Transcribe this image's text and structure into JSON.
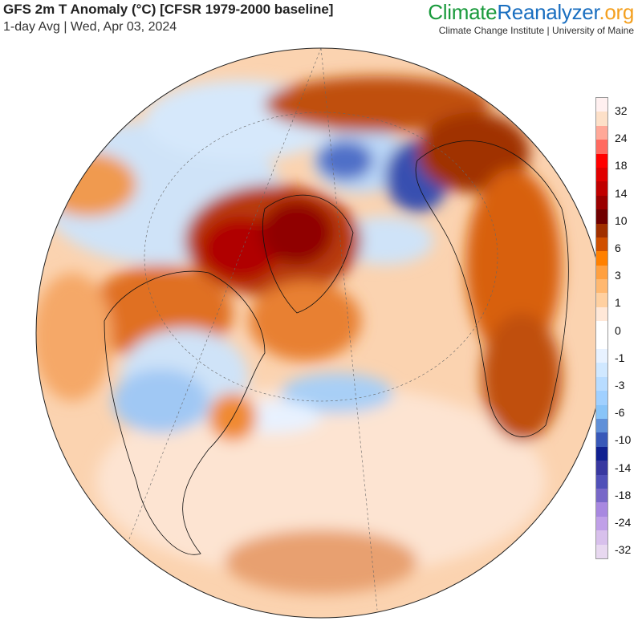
{
  "header": {
    "title": "GFS 2m T Anomaly (°C) [CFSR 1979-2000 baseline]",
    "subtitle": "1-day Avg | Wed, Apr 03, 2024"
  },
  "brand": {
    "part1": "Climate",
    "part2": "Reanalyzer",
    ".org": ".org",
    "institute": "Climate Change Institute | University of Maine"
  },
  "colorbar": {
    "colors": [
      "#fff0f0",
      "#fde0c8",
      "#ffa898",
      "#ff6a60",
      "#ff0000",
      "#e00000",
      "#c00000",
      "#9a0000",
      "#700000",
      "#a03000",
      "#d05000",
      "#ff8000",
      "#ffa040",
      "#ffb870",
      "#ffd0a0",
      "#ffe8d8",
      "#ffffff",
      "#ffffff",
      "#e8f2ff",
      "#d0e8ff",
      "#b8dcff",
      "#a0d0ff",
      "#88c4f8",
      "#6090d8",
      "#3858b8",
      "#102090",
      "#3838a0",
      "#5050b8",
      "#7868c8",
      "#a888e0",
      "#c0a0e8",
      "#d8c0ec",
      "#e8d8f0"
    ],
    "labels": [
      "32",
      "24",
      "18",
      "14",
      "10",
      "6",
      "3",
      "1",
      "0",
      "-1",
      "-3",
      "-6",
      "-10",
      "-14",
      "-18",
      "-24",
      "-32"
    ]
  }
}
